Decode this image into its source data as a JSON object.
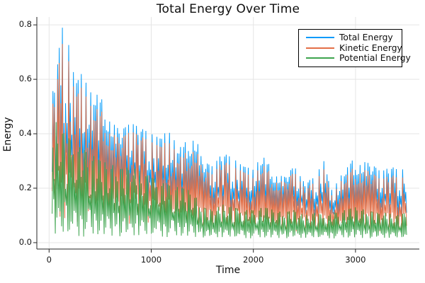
{
  "chart_data": {
    "type": "line",
    "title": "Total Energy Over Time",
    "xlabel": "Time",
    "ylabel": "Energy",
    "xlim": [
      -120,
      3625
    ],
    "ylim": [
      -0.0235,
      0.829
    ],
    "x_data_range": [
      30,
      3500
    ],
    "grid": true,
    "legend_position": "top-right",
    "x_ticks": [
      {
        "value": 0,
        "label": "0"
      },
      {
        "value": 1000,
        "label": "1000"
      },
      {
        "value": 2000,
        "label": "2000"
      },
      {
        "value": 3000,
        "label": "3000"
      }
    ],
    "y_ticks": [
      {
        "value": 0.0,
        "label": "0.0"
      },
      {
        "value": 0.2,
        "label": "0.2"
      },
      {
        "value": 0.4,
        "label": "0.4"
      },
      {
        "value": 0.6,
        "label": "0.6"
      },
      {
        "value": 0.8,
        "label": "0.8"
      }
    ],
    "style": {
      "grid_color": "#e5e5e5",
      "spine_color": "#262626",
      "background": "#ffffff",
      "legend_border": "#000000"
    },
    "points_per_series": 451,
    "noise": [
      0.62,
      0.11,
      0.83,
      0.35,
      0.95,
      0.27,
      0.58,
      0.04,
      0.76,
      0.41,
      0.22,
      0.89,
      0.15,
      0.67,
      0.49,
      0.93,
      0.08,
      0.54,
      0.31,
      0.78,
      0.19,
      0.99,
      0.44,
      0.06,
      0.71,
      0.37,
      0.86,
      0.25,
      0.6,
      0.13,
      0.92,
      0.5,
      0.02,
      0.69,
      0.33,
      0.81,
      0.46,
      0.17,
      0.97,
      0.29,
      0.74,
      0.09,
      0.57,
      0.4,
      0.88,
      0.21,
      0.65,
      0.04,
      0.52,
      0.96,
      0.34,
      0.8,
      0.12
    ],
    "series": [
      {
        "name": "Total Energy",
        "color": "#009AFA",
        "noise_stride": 7,
        "noise_offset": 22,
        "envelope_max": [
          [
            0,
            0.45
          ],
          [
            60,
            0.62
          ],
          [
            130,
            0.79
          ],
          [
            190,
            0.73
          ],
          [
            260,
            0.58
          ],
          [
            330,
            0.63
          ],
          [
            400,
            0.55
          ],
          [
            470,
            0.57
          ],
          [
            540,
            0.52
          ],
          [
            620,
            0.44
          ],
          [
            700,
            0.41
          ],
          [
            800,
            0.44
          ],
          [
            900,
            0.42
          ],
          [
            1000,
            0.4
          ],
          [
            1100,
            0.38
          ],
          [
            1160,
            0.42
          ],
          [
            1250,
            0.36
          ],
          [
            1350,
            0.38
          ],
          [
            1430,
            0.4
          ],
          [
            1500,
            0.3
          ],
          [
            1600,
            0.28
          ],
          [
            1700,
            0.33
          ],
          [
            1800,
            0.31
          ],
          [
            1900,
            0.28
          ],
          [
            2000,
            0.27
          ],
          [
            2100,
            0.33
          ],
          [
            2200,
            0.26
          ],
          [
            2300,
            0.24
          ],
          [
            2400,
            0.28
          ],
          [
            2500,
            0.22
          ],
          [
            2600,
            0.24
          ],
          [
            2690,
            0.3
          ],
          [
            2760,
            0.19
          ],
          [
            2850,
            0.24
          ],
          [
            2950,
            0.31
          ],
          [
            3050,
            0.3
          ],
          [
            3150,
            0.29
          ],
          [
            3250,
            0.26
          ],
          [
            3350,
            0.28
          ],
          [
            3450,
            0.26
          ],
          [
            3500,
            0.3
          ]
        ],
        "envelope_min": [
          [
            0,
            0.15
          ],
          [
            400,
            0.17
          ],
          [
            800,
            0.16
          ],
          [
            1200,
            0.13
          ],
          [
            1600,
            0.1
          ],
          [
            2000,
            0.1
          ],
          [
            2400,
            0.1
          ],
          [
            2800,
            0.09
          ],
          [
            3200,
            0.09
          ],
          [
            3500,
            0.09
          ]
        ]
      },
      {
        "name": "Kinetic Energy",
        "color": "#E36F47",
        "noise_stride": 7,
        "noise_offset": 22,
        "envelope_max": [
          [
            0,
            0.41
          ],
          [
            60,
            0.57
          ],
          [
            130,
            0.73
          ],
          [
            190,
            0.67
          ],
          [
            260,
            0.53
          ],
          [
            330,
            0.58
          ],
          [
            400,
            0.5
          ],
          [
            470,
            0.52
          ],
          [
            540,
            0.48
          ],
          [
            620,
            0.4
          ],
          [
            700,
            0.38
          ],
          [
            800,
            0.41
          ],
          [
            900,
            0.39
          ],
          [
            1000,
            0.37
          ],
          [
            1100,
            0.35
          ],
          [
            1160,
            0.38
          ],
          [
            1250,
            0.33
          ],
          [
            1350,
            0.34
          ],
          [
            1430,
            0.36
          ],
          [
            1500,
            0.27
          ],
          [
            1600,
            0.25
          ],
          [
            1700,
            0.3
          ],
          [
            1800,
            0.28
          ],
          [
            1900,
            0.26
          ],
          [
            2000,
            0.24
          ],
          [
            2100,
            0.3
          ],
          [
            2200,
            0.24
          ],
          [
            2300,
            0.22
          ],
          [
            2400,
            0.26
          ],
          [
            2500,
            0.2
          ],
          [
            2600,
            0.22
          ],
          [
            2690,
            0.27
          ],
          [
            2760,
            0.17
          ],
          [
            2850,
            0.22
          ],
          [
            2950,
            0.28
          ],
          [
            3050,
            0.27
          ],
          [
            3150,
            0.26
          ],
          [
            3250,
            0.23
          ],
          [
            3350,
            0.25
          ],
          [
            3450,
            0.23
          ],
          [
            3500,
            0.27
          ]
        ],
        "envelope_min": [
          [
            0,
            0.07
          ],
          [
            600,
            0.07
          ],
          [
            1200,
            0.06
          ],
          [
            1800,
            0.05
          ],
          [
            2400,
            0.04
          ],
          [
            3000,
            0.04
          ],
          [
            3500,
            0.04
          ]
        ]
      },
      {
        "name": "Potential Energy",
        "color": "#3EA44E",
        "noise_stride": 13,
        "noise_offset": 29,
        "envelope_max": [
          [
            0,
            0.46
          ],
          [
            80,
            0.44
          ],
          [
            150,
            0.4
          ],
          [
            250,
            0.36
          ],
          [
            300,
            0.35
          ],
          [
            400,
            0.33
          ],
          [
            500,
            0.3
          ],
          [
            600,
            0.29
          ],
          [
            700,
            0.27
          ],
          [
            800,
            0.28
          ],
          [
            900,
            0.26
          ],
          [
            1000,
            0.24
          ],
          [
            1100,
            0.22
          ],
          [
            1200,
            0.21
          ],
          [
            1300,
            0.2
          ],
          [
            1400,
            0.19
          ],
          [
            1500,
            0.13
          ],
          [
            1600,
            0.12
          ],
          [
            1700,
            0.14
          ],
          [
            1800,
            0.13
          ],
          [
            1900,
            0.12
          ],
          [
            2000,
            0.12
          ],
          [
            2100,
            0.13
          ],
          [
            2200,
            0.12
          ],
          [
            2300,
            0.11
          ],
          [
            2400,
            0.12
          ],
          [
            2500,
            0.1
          ],
          [
            2600,
            0.11
          ],
          [
            2700,
            0.1
          ],
          [
            2800,
            0.11
          ],
          [
            2900,
            0.12
          ],
          [
            3000,
            0.13
          ],
          [
            3100,
            0.12
          ],
          [
            3200,
            0.11
          ],
          [
            3300,
            0.11
          ],
          [
            3400,
            0.1
          ],
          [
            3500,
            0.11
          ]
        ],
        "envelope_min": [
          [
            0,
            0.02
          ],
          [
            1000,
            0.02
          ],
          [
            2000,
            0.015
          ],
          [
            3500,
            0.015
          ]
        ]
      }
    ]
  }
}
